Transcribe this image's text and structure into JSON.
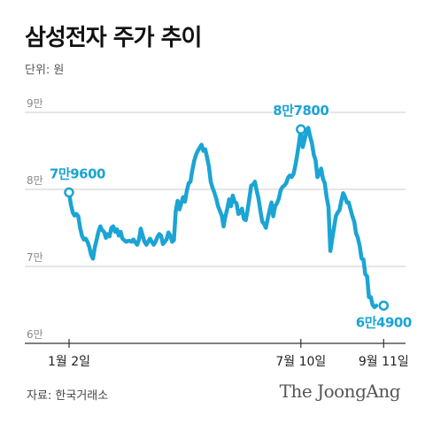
{
  "header": {
    "title": "삼성전자 주가 추이",
    "unit": "단위: 원"
  },
  "footer": {
    "source": "자료: 한국거래소",
    "brand": "The JoongAng"
  },
  "colors": {
    "line": "#1ba4d4",
    "grid": "#cccccc",
    "axis": "#333333"
  },
  "chart_data": {
    "type": "line",
    "title": "삼성전자 주가 추이",
    "ylabel": "단위: 원",
    "y_ticks": [
      "6만",
      "7만",
      "8만",
      "9만"
    ],
    "y_tick_values": [
      60000,
      70000,
      80000,
      90000
    ],
    "ylim": [
      60000,
      91000
    ],
    "x_ticks": [
      "1월 2일",
      "7월 10일",
      "9월 11일"
    ],
    "x_tick_values": [
      0,
      126,
      171
    ],
    "grid": true,
    "annotations": [
      {
        "label": "7만9600",
        "x": 0,
        "y": 79600
      },
      {
        "label": "8만7800",
        "x": 126,
        "y": 87800
      },
      {
        "label": "6만4900",
        "x": 171,
        "y": 64900
      }
    ],
    "series": [
      {
        "values": [
          79600,
          78000,
          77000,
          76600,
          76800,
          76500,
          75000,
          74000,
          73500,
          73600,
          73200,
          72500,
          71500,
          71000,
          72500,
          73500,
          74500,
          75200,
          74700,
          74500,
          73700,
          74200,
          73900,
          75000,
          75200,
          74500,
          74800,
          74000,
          74500,
          73600,
          73400,
          73200,
          73300,
          73300,
          73200,
          73500,
          73100,
          72800,
          73500,
          74900,
          74000,
          73200,
          72800,
          73200,
          73600,
          73200,
          72800,
          73200,
          73800,
          74200,
          74000,
          72900,
          73200,
          73500,
          74400,
          74000,
          73200,
          73400,
          77200,
          78500,
          77400,
          78200,
          79000,
          78400,
          79800,
          80800,
          81000,
          82500,
          83700,
          84500,
          85000,
          85400,
          85800,
          85000,
          85200,
          84200,
          83000,
          81000,
          80200,
          79600,
          78800,
          77800,
          77200,
          76600,
          75200,
          76500,
          77500,
          78700,
          77800,
          79200,
          78400,
          78200,
          76800,
          77000,
          77500,
          76200,
          76000,
          77300,
          78800,
          80500,
          80600,
          81000,
          79800,
          78800,
          77200,
          75800,
          75500,
          75000,
          76200,
          77300,
          78300,
          76500,
          77800,
          78200,
          78800,
          79900,
          80300,
          80500,
          80800,
          81500,
          81800,
          81600,
          82000,
          83100,
          84500,
          86000,
          87800,
          85500,
          86400,
          87400,
          88000,
          86900,
          86000,
          84500,
          83800,
          81600,
          82000,
          82700,
          81400,
          80800,
          79000,
          77700,
          72000,
          73500,
          75000,
          76500,
          77000,
          77300,
          78500,
          79500,
          79000,
          78300,
          78300,
          77400,
          76500,
          75800,
          74300,
          73700,
          72600,
          71000,
          70900,
          69000,
          68700,
          66000,
          66000,
          65000,
          64700,
          64900
        ]
      }
    ]
  }
}
